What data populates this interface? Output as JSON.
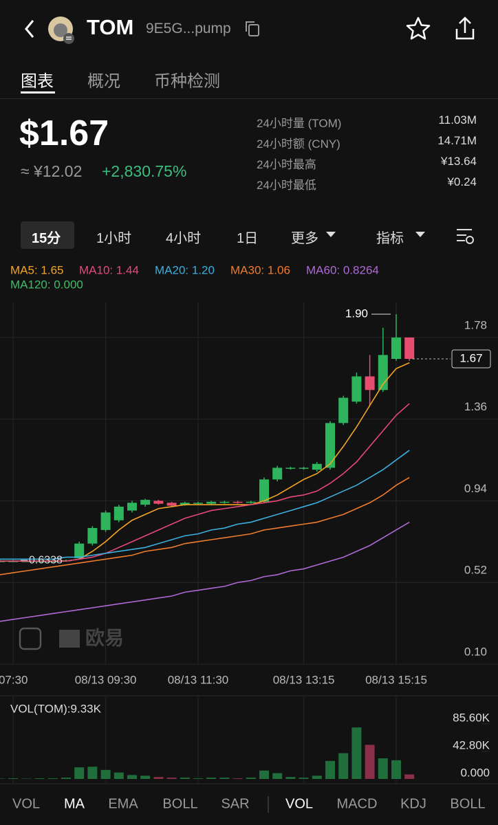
{
  "header": {
    "symbol": "TOM",
    "address": "9E5G...pump"
  },
  "tabs": [
    "图表",
    "概况",
    "币种检测"
  ],
  "price": {
    "main": "$1.67",
    "cny": "≈ ¥12.02",
    "change": "+2,830.75%"
  },
  "stats": [
    {
      "label": "24小时量 (TOM)",
      "value": "11.03M"
    },
    {
      "label": "24小时额 (CNY)",
      "value": "14.71M"
    },
    {
      "label": "24小时最高",
      "value": "¥13.64"
    },
    {
      "label": "24小时最低",
      "value": "¥0.24"
    }
  ],
  "timeframes": [
    "15分",
    "1小时",
    "4小时",
    "1日",
    "更多",
    "指标"
  ],
  "watermark": "欧易",
  "chart_data": {
    "type": "candlestick",
    "categories": [
      null,
      "07:30",
      null,
      null,
      null,
      null,
      null,
      null,
      "08/13 09:30",
      null,
      null,
      null,
      null,
      null,
      null,
      "08/13 11:30",
      null,
      null,
      null,
      null,
      null,
      null,
      null,
      "08/13 13:15",
      null,
      null,
      null,
      null,
      null,
      null,
      "08/13 15:15",
      null
    ],
    "open": [
      0.63,
      0.63,
      0.63,
      0.63,
      0.63,
      0.63,
      0.645,
      0.72,
      0.79,
      0.84,
      0.89,
      0.92,
      0.94,
      0.93,
      0.92,
      0.925,
      0.925,
      0.93,
      0.935,
      0.93,
      0.935,
      1.05,
      1.105,
      1.105,
      1.1,
      1.11,
      1.34,
      1.45,
      1.58,
      1.51,
      1.67,
      1.78
    ],
    "high": [
      0.635,
      0.635,
      0.635,
      0.635,
      0.635,
      0.638,
      0.73,
      0.81,
      0.89,
      0.92,
      0.94,
      0.95,
      0.945,
      0.935,
      0.935,
      0.935,
      0.94,
      0.94,
      0.94,
      0.94,
      1.06,
      1.12,
      1.115,
      1.115,
      1.14,
      1.35,
      1.48,
      1.6,
      1.69,
      1.83,
      1.9,
      1.78
    ],
    "low": [
      0.625,
      0.625,
      0.625,
      0.625,
      0.625,
      0.628,
      0.64,
      0.71,
      0.78,
      0.83,
      0.88,
      0.91,
      0.92,
      0.91,
      0.915,
      0.92,
      0.92,
      0.925,
      0.925,
      0.925,
      0.93,
      1.04,
      1.1,
      1.1,
      1.09,
      1.1,
      1.33,
      1.44,
      1.43,
      1.5,
      1.66,
      1.66
    ],
    "close": [
      0.63,
      0.63,
      0.63,
      0.63,
      0.63,
      0.634,
      0.72,
      0.8,
      0.88,
      0.91,
      0.93,
      0.945,
      0.925,
      0.915,
      0.93,
      0.93,
      0.935,
      0.935,
      0.93,
      0.935,
      1.05,
      1.11,
      1.11,
      1.11,
      1.13,
      1.34,
      1.47,
      1.58,
      1.51,
      1.69,
      1.78,
      1.67
    ],
    "colors": {
      "up": "#2fb45e",
      "down": "#e64d6e"
    },
    "ma": [
      {
        "name": "MA5: 1.65",
        "color": "#f5a623",
        "values": [
          0.63,
          0.63,
          0.63,
          0.63,
          0.63,
          0.63,
          0.64,
          0.68,
          0.73,
          0.79,
          0.84,
          0.87,
          0.9,
          0.91,
          0.92,
          0.92,
          0.92,
          0.92,
          0.92,
          0.92,
          0.94,
          0.97,
          1.01,
          1.05,
          1.08,
          1.13,
          1.22,
          1.32,
          1.43,
          1.54,
          1.62,
          1.65
        ]
      },
      {
        "name": "MA10: 1.44",
        "color": "#e8487c",
        "values": [
          0.63,
          0.63,
          0.63,
          0.63,
          0.63,
          0.63,
          0.64,
          0.65,
          0.67,
          0.7,
          0.73,
          0.76,
          0.79,
          0.82,
          0.85,
          0.87,
          0.89,
          0.9,
          0.91,
          0.92,
          0.93,
          0.94,
          0.96,
          0.97,
          0.99,
          1.03,
          1.08,
          1.14,
          1.22,
          1.3,
          1.38,
          1.44
        ]
      },
      {
        "name": "MA20: 1.20",
        "color": "#3ab0e0",
        "values": [
          0.64,
          0.64,
          0.64,
          0.64,
          0.64,
          0.65,
          0.65,
          0.66,
          0.67,
          0.68,
          0.69,
          0.7,
          0.72,
          0.74,
          0.76,
          0.77,
          0.79,
          0.8,
          0.82,
          0.83,
          0.85,
          0.87,
          0.89,
          0.91,
          0.93,
          0.96,
          0.99,
          1.02,
          1.06,
          1.1,
          1.15,
          1.2
        ]
      },
      {
        "name": "MA30: 1.06",
        "color": "#f07c2c",
        "values": [
          0.56,
          0.57,
          0.58,
          0.59,
          0.6,
          0.61,
          0.62,
          0.63,
          0.64,
          0.65,
          0.66,
          0.68,
          0.69,
          0.7,
          0.72,
          0.73,
          0.74,
          0.75,
          0.76,
          0.77,
          0.79,
          0.8,
          0.81,
          0.82,
          0.83,
          0.85,
          0.87,
          0.9,
          0.93,
          0.97,
          1.02,
          1.06
        ]
      },
      {
        "name": "MA60: 0.8264",
        "color": "#b069d6",
        "values": [
          0.32,
          0.33,
          0.34,
          0.35,
          0.36,
          0.37,
          0.38,
          0.39,
          0.4,
          0.41,
          0.42,
          0.43,
          0.44,
          0.45,
          0.47,
          0.48,
          0.49,
          0.5,
          0.52,
          0.53,
          0.55,
          0.56,
          0.58,
          0.59,
          0.61,
          0.63,
          0.65,
          0.68,
          0.71,
          0.75,
          0.79,
          0.83
        ]
      },
      {
        "name": "MA120: 0.000",
        "color": "#3dbd6a"
      }
    ],
    "ylim": [
      0.1,
      1.96
    ],
    "yticks": [
      {
        "value": 1.78,
        "label": "1.78"
      },
      1.36,
      0.94,
      0.52,
      {
        "value": 0.1,
        "label": "0.10"
      }
    ],
    "last_price": 1.67,
    "high_annotation": {
      "value": 1.9,
      "label": "1.90"
    },
    "low_annotation": 0.6338,
    "volume": {
      "title": "VOL(TOM):9.33K",
      "values": [
        0.5,
        1,
        0.5,
        1,
        1,
        2,
        18,
        19,
        14,
        10,
        6,
        5,
        3,
        2,
        2,
        1,
        2,
        2,
        1,
        2,
        13,
        9,
        3,
        2,
        5,
        28,
        40,
        80,
        53,
        32,
        29,
        7
      ],
      "ylim": [
        0,
        126
      ],
      "yticks": [
        {
          "value": 85.6,
          "label": "85.60K"
        },
        {
          "value": 42.8,
          "label": "42.80K"
        },
        {
          "value": 0,
          "label": "0.000"
        }
      ]
    }
  },
  "indicators": {
    "main": [
      "VOL",
      "MA",
      "EMA",
      "BOLL",
      "SAR"
    ],
    "sub": [
      "VOL",
      "MACD",
      "KDJ",
      "BOLL"
    ]
  }
}
